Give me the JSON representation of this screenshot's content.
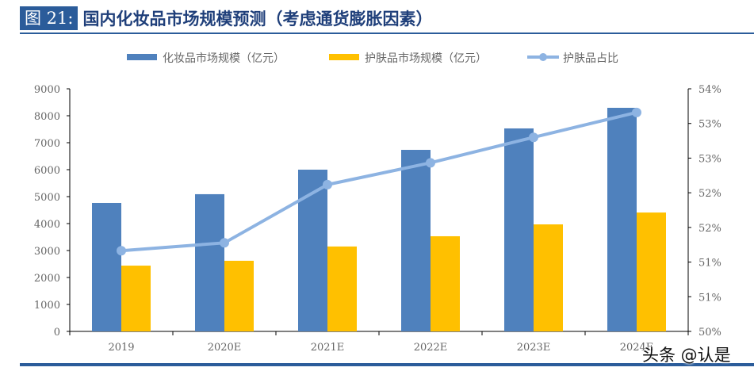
{
  "header": {
    "figure_label": "图 21:",
    "title": "国内化妆品市场规模预测（考虑通货膨胀因素）"
  },
  "watermark": "头条 @认是",
  "chart_data": {
    "type": "bar+line",
    "categories": [
      "2019",
      "2020E",
      "2021E",
      "2022E",
      "2023E",
      "2024E"
    ],
    "series": [
      {
        "name": "化妆品市场规模（亿元）",
        "type": "bar",
        "axis": "left",
        "color": "#4f81bd",
        "values": [
          4765,
          5090,
          6000,
          6735,
          7530,
          8295
        ]
      },
      {
        "name": "护肤品市场规模（亿元）",
        "type": "bar",
        "axis": "left",
        "color": "#ffc000",
        "values": [
          2440,
          2620,
          3150,
          3530,
          3970,
          4410
        ]
      },
      {
        "name": "护肤品占比",
        "type": "line",
        "axis": "right",
        "color": "#8db3e2",
        "values": [
          51.33,
          51.46,
          52.42,
          52.78,
          53.2,
          53.61
        ]
      }
    ],
    "left_axis": {
      "ylim": [
        0,
        9000
      ],
      "ticks": [
        "0",
        "1000",
        "2000",
        "3000",
        "4000",
        "5000",
        "6000",
        "7000",
        "8000",
        "9000"
      ]
    },
    "right_axis": {
      "ylim": [
        50,
        54
      ],
      "ticks": [
        "50%",
        "51%",
        "51%",
        "52%",
        "52%",
        "53%",
        "53%",
        "54%"
      ]
    },
    "legend_position": "top",
    "grid": false
  }
}
